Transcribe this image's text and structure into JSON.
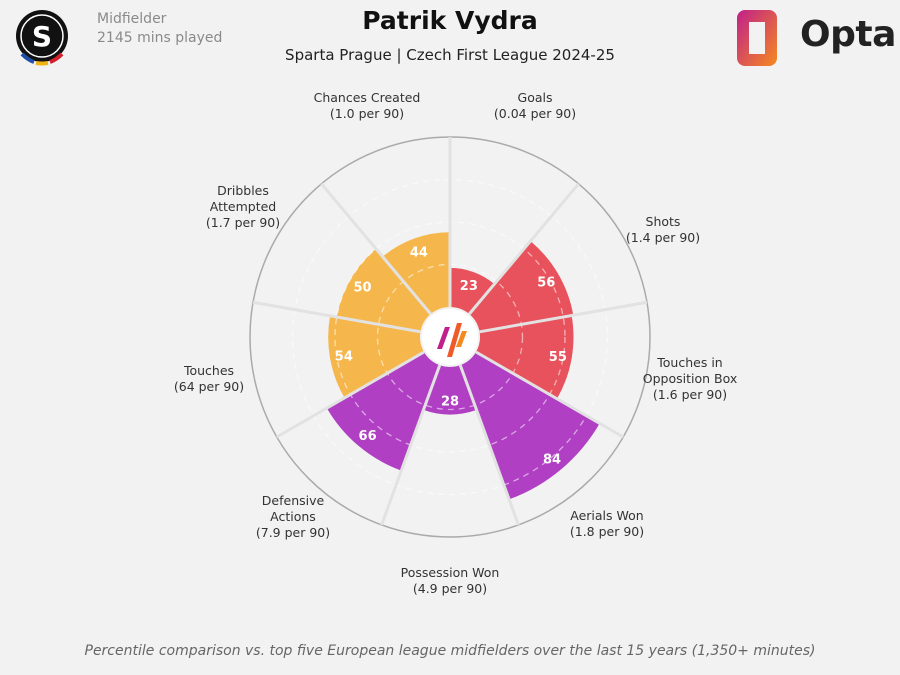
{
  "header": {
    "position": "Midfielder",
    "minutes": "2145 mins played",
    "title": "Patrik Vydra",
    "subtitle": "Sparta Prague | Czech First League 2024-25",
    "club_logo_letter": "S",
    "brand": "Opta"
  },
  "footer": "Percentile comparison vs. top five European league midfielders over the last 15 years (1,350+ minutes)",
  "colors": {
    "background": "#f2f2f2",
    "attacking": "#e8525c",
    "defending": "#b03fc4",
    "possession": "#f5b74c"
  },
  "chart_data": {
    "type": "pizza",
    "range": [
      0,
      100
    ],
    "rings": [
      25,
      50,
      75
    ],
    "categories": [
      {
        "name": "Goals",
        "sub": "(0.04 per 90)",
        "value": 23,
        "group": "attacking"
      },
      {
        "name": "Shots",
        "sub": "(1.4 per 90)",
        "value": 56,
        "group": "attacking"
      },
      {
        "name": "Touches in Opposition Box",
        "sub": "(1.6 per 90)",
        "value": 55,
        "group": "attacking"
      },
      {
        "name": "Aerials Won",
        "sub": "(1.8 per 90)",
        "value": 84,
        "group": "defending"
      },
      {
        "name": "Possession Won",
        "sub": "(4.9 per 90)",
        "value": 28,
        "group": "defending"
      },
      {
        "name": "Defensive Actions",
        "sub": "(7.9 per 90)",
        "value": 66,
        "group": "defending"
      },
      {
        "name": "Touches",
        "sub": "(64 per 90)",
        "value": 54,
        "group": "possession"
      },
      {
        "name": "Dribbles Attempted",
        "sub": "(1.7 per 90)",
        "value": 50,
        "group": "possession"
      },
      {
        "name": "Chances Created",
        "sub": "(1.0 per 90)",
        "value": 44,
        "group": "possession"
      }
    ]
  }
}
